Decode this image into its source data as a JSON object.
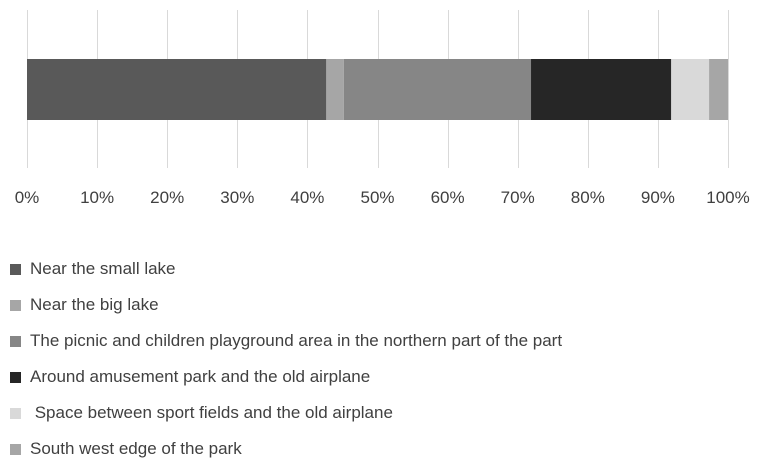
{
  "chart_data": {
    "type": "bar",
    "orientation": "horizontal",
    "stacking": "percent",
    "categories": [
      ""
    ],
    "series": [
      {
        "name": "Near the small lake",
        "values": [
          42.7
        ],
        "color": "#595959"
      },
      {
        "name": "Near the big lake",
        "values": [
          2.5
        ],
        "color": "#a6a6a6"
      },
      {
        "name": "The picnic and children playground area in the northern part of the part",
        "values": [
          26.7
        ],
        "color": "#868686"
      },
      {
        "name": "Around amusement park and the old airplane",
        "values": [
          20.0
        ],
        "color": "#262626"
      },
      {
        "name": " Space between sport fields and the old airplane",
        "values": [
          5.4
        ],
        "color": "#d9d9d9"
      },
      {
        "name": "South west edge of the park",
        "values": [
          2.7
        ],
        "color": "#a6a6a6"
      }
    ],
    "xlim": [
      0,
      100
    ],
    "x_ticks": [
      "0%",
      "10%",
      "20%",
      "30%",
      "40%",
      "50%",
      "60%",
      "70%",
      "80%",
      "90%",
      "100%"
    ],
    "title": "",
    "xlabel": "",
    "ylabel": "",
    "grid": "vertical",
    "legend_position": "bottom"
  }
}
